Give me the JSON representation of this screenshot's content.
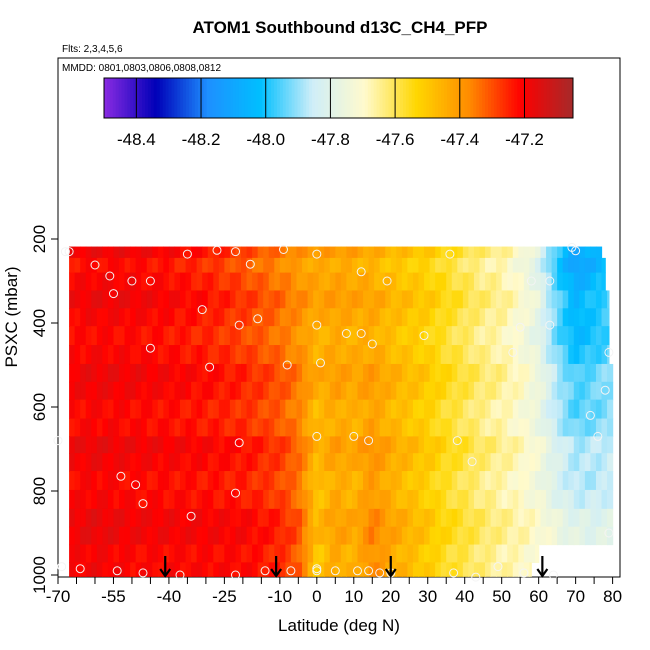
{
  "chart_data": {
    "type": "heatmap",
    "title": "ATOM1 Southbound d13C_CH4_PFP",
    "subtitle_flights": "Flts: 2,3,4,5,6",
    "subtitle_dates": "MMDD: 0801,0803,0806,0808,0812",
    "xlabel": "Latitude (deg N)",
    "ylabel": "PSXC (mbar)",
    "xlim": [
      -70,
      82
    ],
    "ylim": [
      1000,
      215
    ],
    "x_ticks": [
      -70,
      -55,
      -40,
      -25,
      -10,
      0,
      10,
      20,
      30,
      40,
      50,
      60,
      70,
      80
    ],
    "x_ticks_unlabeled": [
      -65,
      -60,
      -50,
      -45,
      -35,
      -30,
      -20,
      -15,
      -5,
      5,
      15,
      25,
      35,
      45,
      55,
      65,
      75
    ],
    "y_ticks": [
      200,
      400,
      600,
      800,
      1000
    ],
    "colorbar": {
      "range": [
        -48.5,
        -47.05
      ],
      "ticks": [
        -48.4,
        -48.2,
        -48.0,
        -47.8,
        -47.6,
        -47.4,
        -47.2
      ],
      "colors": [
        "#8a2be2",
        "#0000b8",
        "#1e90ff",
        "#00bfff",
        "#cfeef8",
        "#fffacd",
        "#ffd700",
        "#ff8c00",
        "#ff0000",
        "#a52a2a"
      ]
    },
    "pressure_rows": [
      230,
      260,
      300,
      345,
      385,
      430,
      475,
      520,
      560,
      605,
      650,
      690,
      730,
      775,
      820,
      865,
      905,
      950,
      990
    ],
    "row_extent_lat": [
      [
        -67,
        77
      ],
      [
        -67,
        78
      ],
      [
        -67,
        78
      ],
      [
        -67,
        79
      ],
      [
        -67,
        79
      ],
      [
        -67,
        79
      ],
      [
        -67,
        79
      ],
      [
        -67,
        80
      ],
      [
        -67,
        80
      ],
      [
        -67,
        80
      ],
      [
        -67,
        80
      ],
      [
        -67,
        80
      ],
      [
        -67,
        80
      ],
      [
        -67,
        80
      ],
      [
        -67,
        80
      ],
      [
        -67,
        80
      ],
      [
        -67,
        80
      ],
      [
        -67,
        60
      ],
      [
        -67,
        58
      ]
    ],
    "field_profile": {
      "lat_nodes": [
        -70,
        -60,
        -50,
        -40,
        -30,
        -20,
        -10,
        -5,
        0,
        5,
        10,
        15,
        20,
        25,
        30,
        35,
        40,
        45,
        50,
        55,
        60,
        63,
        66,
        70,
        75,
        80
      ],
      "upper_d13C": [
        -47.22,
        -47.2,
        -47.2,
        -47.22,
        -47.25,
        -47.3,
        -47.36,
        -47.4,
        -47.42,
        -47.42,
        -47.43,
        -47.45,
        -47.48,
        -47.5,
        -47.52,
        -47.56,
        -47.6,
        -47.64,
        -47.66,
        -47.72,
        -47.8,
        -47.92,
        -48.02,
        -48.12,
        -48.06,
        -48.0
      ],
      "lower_d13C": [
        -47.2,
        -47.18,
        -47.2,
        -47.2,
        -47.2,
        -47.2,
        -47.24,
        -47.3,
        -47.5,
        -47.42,
        -47.45,
        -47.36,
        -47.42,
        -47.46,
        -47.5,
        -47.55,
        -47.58,
        -47.62,
        -47.65,
        -47.67,
        -47.7,
        -47.72,
        -47.74,
        -47.76,
        -47.78,
        -47.78
      ]
    },
    "samples": [
      [
        -68,
        230
      ],
      [
        -67,
        230
      ],
      [
        -60,
        262
      ],
      [
        -56,
        288
      ],
      [
        -50,
        300
      ],
      [
        -45,
        300
      ],
      [
        -35,
        236
      ],
      [
        -27,
        227
      ],
      [
        -22,
        230
      ],
      [
        -18,
        260
      ],
      [
        -9,
        225
      ],
      [
        0,
        236
      ],
      [
        12,
        278
      ],
      [
        19,
        300
      ],
      [
        36,
        236
      ],
      [
        58,
        300
      ],
      [
        63,
        300
      ],
      [
        69,
        220
      ],
      [
        70,
        228
      ],
      [
        -55,
        330
      ],
      [
        -31,
        368
      ],
      [
        -16,
        390
      ],
      [
        -21,
        405
      ],
      [
        0,
        405
      ],
      [
        8,
        425
      ],
      [
        12,
        425
      ],
      [
        15,
        450
      ],
      [
        29,
        430
      ],
      [
        55,
        410
      ],
      [
        63,
        405
      ],
      [
        -45,
        460
      ],
      [
        -29,
        505
      ],
      [
        -8,
        500
      ],
      [
        1,
        495
      ],
      [
        53,
        470
      ],
      [
        79,
        470
      ],
      [
        78,
        560
      ],
      [
        74,
        620
      ],
      [
        76,
        670
      ],
      [
        -70,
        680
      ],
      [
        -21,
        685
      ],
      [
        0,
        670
      ],
      [
        10,
        670
      ],
      [
        14,
        680
      ],
      [
        38,
        680
      ],
      [
        -53,
        765
      ],
      [
        -49,
        785
      ],
      [
        -22,
        805
      ],
      [
        -34,
        860
      ],
      [
        -47,
        830
      ],
      [
        42,
        730
      ],
      [
        79,
        900
      ],
      [
        -69,
        980
      ],
      [
        -64,
        985
      ],
      [
        -54,
        990
      ],
      [
        -47,
        995
      ],
      [
        -37,
        1000
      ],
      [
        -22,
        1000
      ],
      [
        -14,
        990
      ],
      [
        -7,
        990
      ],
      [
        0,
        990
      ],
      [
        0,
        985
      ],
      [
        5,
        990
      ],
      [
        11,
        990
      ],
      [
        14,
        990
      ],
      [
        17,
        995
      ],
      [
        20,
        995
      ],
      [
        37,
        995
      ],
      [
        43,
        1005
      ],
      [
        49,
        980
      ],
      [
        56,
        995
      ],
      [
        64,
        1000
      ]
    ],
    "arrows_lat": [
      -41,
      -11,
      20,
      61
    ]
  }
}
